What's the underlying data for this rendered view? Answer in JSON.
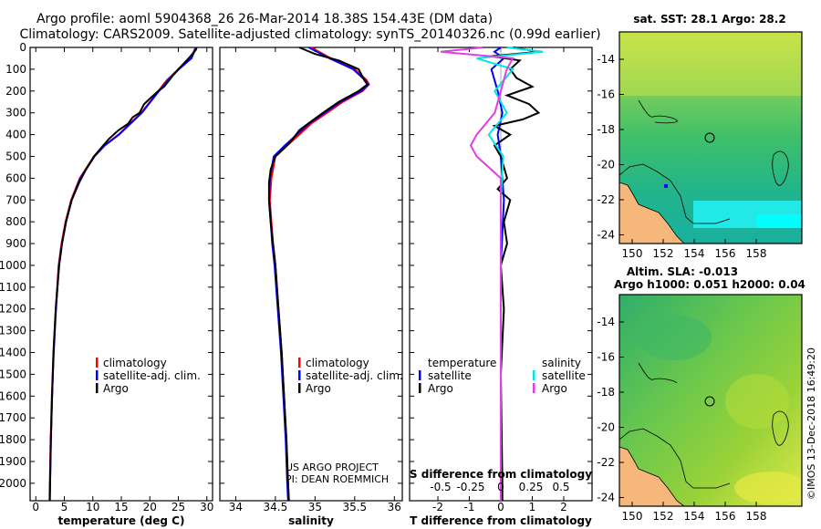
{
  "header": {
    "title_line1": "Argo profile: aoml 5904368_26 26-Mar-2014 18.38S 154.43E (DM data)",
    "title_line2": "Climatology: CARS2009. Satellite-adjusted climatology: synTS_20140326.nc (0.99d earlier)"
  },
  "colors": {
    "climatology": "#ff0000",
    "satellite": "#0000ff",
    "argo": "#000000",
    "satellite_salinity": "#00e5e5",
    "climatology_salinity": "#e040e0",
    "land": "#f6b87a"
  },
  "chart_data": [
    {
      "type": "line",
      "name": "temperature-profile",
      "xlabel": "temperature (deg C)",
      "ylabel": "",
      "xlim": [
        -1,
        31
      ],
      "ylim": [
        2080,
        0
      ],
      "xticks": [
        "0",
        "5",
        "10",
        "15",
        "20",
        "25",
        "30"
      ],
      "xtick_values": [
        0,
        5,
        10,
        15,
        20,
        25,
        30
      ],
      "yticks": [
        "0",
        "100",
        "200",
        "300",
        "400",
        "500",
        "600",
        "700",
        "800",
        "900",
        "1000",
        "1100",
        "1200",
        "1300",
        "1400",
        "1500",
        "1600",
        "1700",
        "1800",
        "1900",
        "2000"
      ],
      "ytick_values": [
        0,
        100,
        200,
        300,
        400,
        500,
        600,
        700,
        800,
        900,
        1000,
        1100,
        1200,
        1300,
        1400,
        1500,
        1600,
        1700,
        1800,
        1900,
        2000
      ],
      "legend": [
        "climatology",
        "satellite-adj. clim.",
        "Argo"
      ],
      "series": [
        {
          "name": "climatology",
          "depth": [
            0,
            50,
            100,
            150,
            200,
            250,
            300,
            350,
            400,
            450,
            500,
            600,
            700,
            800,
            900,
            1000,
            1200,
            1400,
            1600,
            1800,
            2000,
            2080
          ],
          "values": [
            28,
            27.2,
            25,
            23,
            21.5,
            20,
            18.5,
            16.5,
            14.5,
            12,
            10.2,
            7.7,
            6.2,
            5.2,
            4.5,
            4,
            3.5,
            3.1,
            2.8,
            2.6,
            2.45,
            2.4
          ]
        },
        {
          "name": "satellite-adj. clim.",
          "depth": [
            0,
            50,
            100,
            150,
            200,
            250,
            300,
            350,
            400,
            450,
            500,
            600,
            700,
            800,
            900,
            1000,
            1200,
            1400,
            1600,
            1800,
            2000,
            2080
          ],
          "values": [
            28.1,
            27.3,
            25.1,
            23.2,
            21.6,
            20.1,
            18.6,
            16.6,
            14.6,
            12.1,
            10.3,
            7.8,
            6.3,
            5.3,
            4.6,
            4.05,
            3.55,
            3.15,
            2.85,
            2.65,
            2.5,
            2.45
          ]
        },
        {
          "name": "Argo",
          "depth": [
            0,
            10,
            20,
            50,
            100,
            130,
            180,
            200,
            230,
            260,
            300,
            320,
            350,
            380,
            420,
            460,
            500,
            560,
            620,
            700,
            800,
            900,
            1000,
            1100,
            1200,
            1400,
            1600,
            1800,
            2000,
            2080
          ],
          "values": [
            28.2,
            28.1,
            27.8,
            26.8,
            25,
            24,
            22.5,
            21.5,
            20.2,
            19,
            18.2,
            17,
            16.2,
            14.5,
            12.8,
            11.5,
            10.2,
            8.8,
            7.6,
            6.3,
            5.3,
            4.6,
            4.1,
            3.8,
            3.5,
            3.1,
            2.85,
            2.65,
            2.5,
            2.45
          ]
        }
      ]
    },
    {
      "type": "line",
      "name": "salinity-profile",
      "xlabel": "salinity",
      "ylabel": "",
      "xlim": [
        33.8,
        36.1
      ],
      "ylim": [
        2080,
        0
      ],
      "xticks": [
        "34",
        "34.5",
        "35",
        "35.5",
        "36"
      ],
      "xtick_values": [
        34,
        34.5,
        35,
        35.5,
        36
      ],
      "legend": [
        "climatology",
        "satellite-adj. clim.",
        "Argo"
      ],
      "annotation_line1": "US ARGO PROJECT",
      "annotation_line2": "PI: DEAN ROEMMICH",
      "series": [
        {
          "name": "climatology",
          "depth": [
            0,
            50,
            100,
            150,
            170,
            200,
            250,
            300,
            350,
            400,
            450,
            500,
            600,
            700,
            800,
            900,
            1000,
            1200,
            1400,
            1600,
            1800,
            2000,
            2080
          ],
          "values": [
            34.95,
            35.2,
            35.5,
            35.65,
            35.68,
            35.6,
            35.35,
            35.15,
            34.95,
            34.8,
            34.65,
            34.5,
            34.45,
            34.43,
            34.45,
            34.47,
            34.5,
            34.54,
            34.58,
            34.61,
            34.64,
            34.66,
            34.67
          ]
        },
        {
          "name": "satellite-adj. clim.",
          "depth": [
            0,
            50,
            100,
            150,
            170,
            200,
            250,
            300,
            350,
            400,
            450,
            500,
            600,
            700,
            800,
            900,
            1000,
            1200,
            1400,
            1600,
            1800,
            2000,
            2080
          ],
          "values": [
            34.92,
            35.18,
            35.48,
            35.63,
            35.67,
            35.58,
            35.32,
            35.12,
            34.92,
            34.77,
            34.62,
            34.48,
            34.43,
            34.42,
            34.44,
            34.46,
            34.49,
            34.53,
            34.57,
            34.6,
            34.63,
            34.65,
            34.66
          ]
        },
        {
          "name": "Argo",
          "depth": [
            0,
            30,
            60,
            100,
            150,
            170,
            200,
            250,
            300,
            340,
            380,
            420,
            460,
            500,
            560,
            620,
            700,
            800,
            900,
            1000,
            1200,
            1400,
            1600,
            1800,
            2000,
            2080
          ],
          "values": [
            34.8,
            35,
            35.3,
            35.55,
            35.62,
            35.66,
            35.55,
            35.3,
            35.1,
            34.95,
            34.8,
            34.72,
            34.62,
            34.5,
            34.44,
            34.42,
            34.42,
            34.44,
            34.47,
            34.5,
            34.54,
            34.58,
            34.61,
            34.64,
            34.66,
            34.67
          ]
        }
      ]
    },
    {
      "type": "line",
      "name": "difference-profile",
      "xlabel": "T difference from climatology",
      "ylabel": "",
      "xlim": [
        -2.9,
        2.9
      ],
      "ylim": [
        2080,
        0
      ],
      "xticks": [
        "-2",
        "-1",
        "0",
        "1",
        "2"
      ],
      "xtick_values": [
        -2,
        -1,
        0,
        1,
        2
      ],
      "s_axis_label": "S difference from climatology",
      "s_ticks": [
        "-0.5",
        "-0.25",
        "0",
        "0.25",
        "0.5"
      ],
      "s_tick_values": [
        -0.5,
        -0.25,
        0,
        0.25,
        0.5
      ],
      "legend_temperature": "temperature",
      "legend_salinity": "salinity",
      "legend_satellite": "satellite",
      "legend_argo": "Argo",
      "series": [
        {
          "name": "T satellite",
          "depth": [
            0,
            20,
            50,
            100,
            150,
            200,
            300,
            400,
            500,
            700,
            1000,
            2000,
            2080
          ],
          "values": [
            0,
            -0.2,
            0.1,
            -0.3,
            -0.2,
            -0.1,
            0.05,
            -0.1,
            0,
            0.1,
            0,
            0,
            0
          ]
        },
        {
          "name": "T Argo",
          "depth": [
            0,
            20,
            40,
            60,
            100,
            140,
            180,
            220,
            260,
            300,
            330,
            360,
            400,
            450,
            500,
            600,
            650,
            700,
            800,
            900,
            1000,
            1200,
            1500,
            2000,
            2080
          ],
          "values": [
            0.4,
            1.2,
            -0.3,
            0.6,
            0.3,
            0.5,
            1,
            0.2,
            0.9,
            1.2,
            0.7,
            -0.2,
            0.3,
            -0.2,
            0,
            0.2,
            -0.1,
            0.3,
            0.1,
            0.2,
            0,
            0.1,
            0,
            0.05,
            0.05
          ]
        },
        {
          "name": "S satellite",
          "depth": [
            0,
            20,
            50,
            100,
            200,
            300,
            400,
            500,
            700,
            1000,
            2000,
            2080
          ],
          "values": [
            0.05,
            0.35,
            -0.2,
            0.1,
            -0.05,
            0.05,
            -0.1,
            0.02,
            0,
            0,
            0,
            0
          ]
        },
        {
          "name": "S Argo",
          "depth": [
            0,
            20,
            50,
            100,
            200,
            300,
            400,
            450,
            500,
            550,
            600,
            700,
            1000,
            2000,
            2080
          ],
          "values": [
            -0.15,
            -0.5,
            0.1,
            0.05,
            0,
            -0.05,
            -0.2,
            -0.25,
            -0.2,
            -0.1,
            0,
            0,
            0,
            0,
            0
          ]
        }
      ]
    }
  ],
  "map_top": {
    "title": "sat. SST: 28.1  Argo: 28.2",
    "xticks": [
      "150",
      "152",
      "154",
      "156",
      "158"
    ],
    "yticks": [
      "-14",
      "-16",
      "-18",
      "-20",
      "-22",
      "-24"
    ]
  },
  "map_bottom": {
    "title1": "Altim. SLA: -0.013",
    "title2": "Argo h1000: 0.051 h2000: 0.04",
    "xticks": [
      "150",
      "152",
      "154",
      "156",
      "158"
    ],
    "yticks": [
      "-14",
      "-16",
      "-18",
      "-20",
      "-22",
      "-24"
    ]
  },
  "footer": {
    "stamp": "©IMOS 13-Dec-2018 16:49:20"
  }
}
